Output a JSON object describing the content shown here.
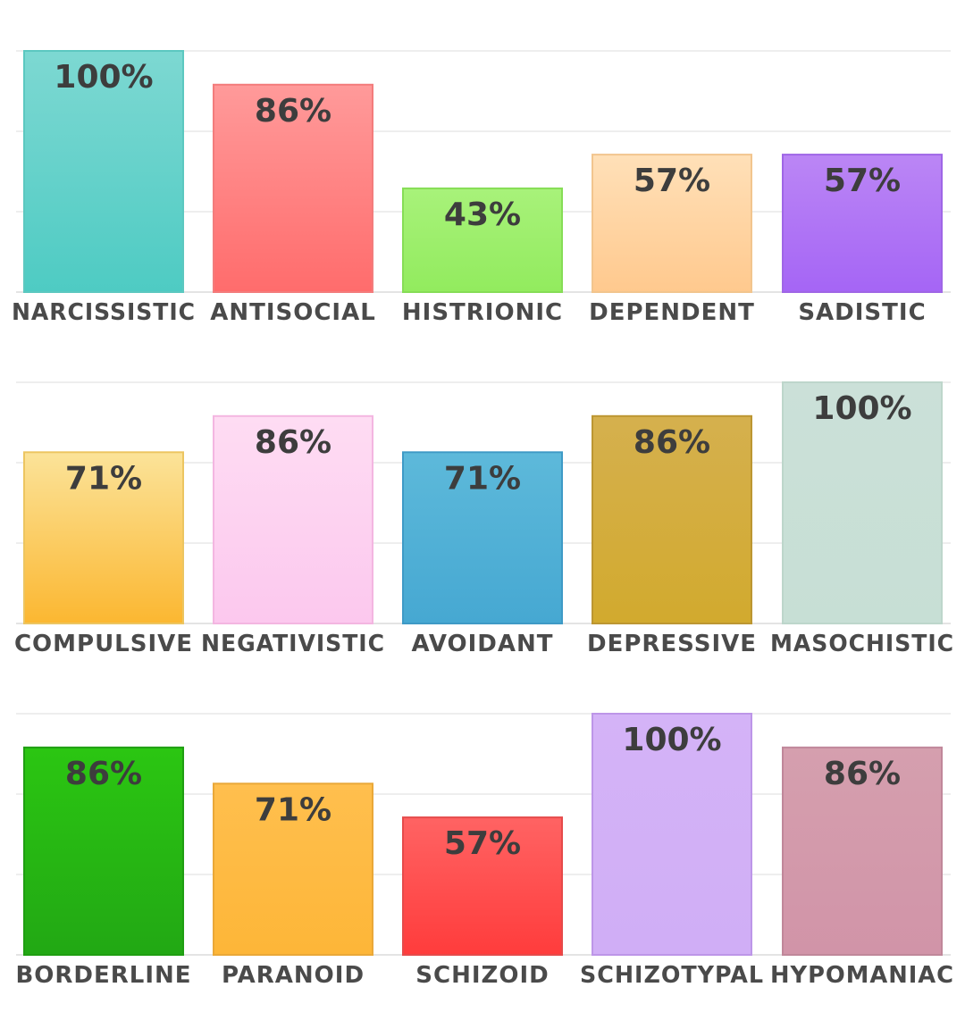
{
  "chart_data": [
    {
      "type": "bar",
      "title": "",
      "xlabel": "",
      "ylabel": "",
      "ylim": [
        0,
        100
      ],
      "grid": true,
      "legend": "none",
      "categories": [
        "NARCISSISTIC",
        "ANTISOCIAL",
        "HISTRIONIC",
        "DEPENDENT",
        "SADISTIC"
      ],
      "values": [
        100,
        86,
        43,
        57,
        57
      ],
      "labels": [
        "100%",
        "86%",
        "43%",
        "57%",
        "57%"
      ],
      "colors": [
        {
          "top": "#7dd8d2",
          "bottom": "#4ecbc3",
          "border": "#5cc8c0"
        },
        {
          "top": "#ff9a9a",
          "bottom": "#ff6c6c",
          "border": "#f37c7c"
        },
        {
          "top": "#a8f27a",
          "bottom": "#92eb5e",
          "border": "#86dd56"
        },
        {
          "top": "#ffe0b8",
          "bottom": "#ffc98e",
          "border": "#f2c58e"
        },
        {
          "top": "#bb86f5",
          "bottom": "#a565f5",
          "border": "#9f66e6"
        }
      ]
    },
    {
      "type": "bar",
      "title": "",
      "xlabel": "",
      "ylabel": "",
      "ylim": [
        0,
        100
      ],
      "grid": true,
      "legend": "none",
      "categories": [
        "COMPULSIVE",
        "NEGATIVISTIC",
        "AVOIDANT",
        "DEPRESSIVE",
        "MASOCHISTIC"
      ],
      "values": [
        71,
        86,
        71,
        86,
        100
      ],
      "labels": [
        "71%",
        "86%",
        "71%",
        "86%",
        "100%"
      ],
      "colors": [
        {
          "top": "#fbe399",
          "bottom": "#fbb731",
          "border": "#ecc561"
        },
        {
          "top": "#fedcf3",
          "bottom": "#fcc8ee",
          "border": "#f3b6e1"
        },
        {
          "top": "#5db9da",
          "bottom": "#46a8d2",
          "border": "#3e9ac6"
        },
        {
          "top": "#d5b04e",
          "bottom": "#d2aa2e",
          "border": "#bc9632"
        },
        {
          "top": "#cbe0d8",
          "bottom": "#c7dfd5",
          "border": "#bdd6cb"
        }
      ]
    },
    {
      "type": "bar",
      "title": "",
      "xlabel": "",
      "ylabel": "",
      "ylim": [
        0,
        100
      ],
      "grid": true,
      "legend": "none",
      "categories": [
        "BORDERLINE",
        "PARANOID",
        "SCHIZOID",
        "SCHIZOTYPAL",
        "HYPOMANIAC"
      ],
      "values": [
        86,
        71,
        57,
        100,
        86
      ],
      "labels": [
        "86%",
        "71%",
        "57%",
        "100%",
        "86%"
      ],
      "colors": [
        {
          "top": "#2bc612",
          "bottom": "#22a814",
          "border": "#1f9e12"
        },
        {
          "top": "#ffbf4e",
          "bottom": "#fdb638",
          "border": "#eaa838"
        },
        {
          "top": "#ff6363",
          "bottom": "#ff3c3c",
          "border": "#e64a4a"
        },
        {
          "top": "#d4b3f7",
          "bottom": "#d0aef6",
          "border": "#bd96e8"
        },
        {
          "top": "#d59fae",
          "bottom": "#d194a8",
          "border": "#c0879a"
        }
      ]
    }
  ]
}
